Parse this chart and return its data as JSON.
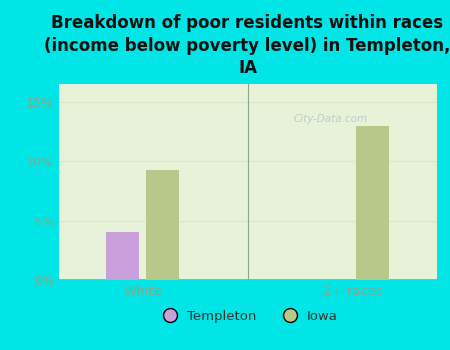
{
  "title": "Breakdown of poor residents within races\n(income below poverty level) in Templeton,\nIA",
  "categories": [
    "White",
    "2+ races"
  ],
  "templeton_values": [
    4.0,
    0.0
  ],
  "iowa_values": [
    9.3,
    13.0
  ],
  "templeton_color": "#c9a0dc",
  "iowa_color": "#b8c88a",
  "background_color": "#00e5e5",
  "plot_bg_top": "#e8f2d8",
  "plot_bg_bottom": "#f5faf0",
  "yticks": [
    0,
    5,
    10,
    15
  ],
  "ylim": [
    0,
    16.5
  ],
  "bar_width": 0.32,
  "legend_labels": [
    "Templeton",
    "Iowa"
  ],
  "tick_color": "#88a888",
  "grid_color": "#d8e8c8",
  "divider_color": "#88aa88",
  "watermark": "City-Data.com",
  "title_fontsize": 12
}
